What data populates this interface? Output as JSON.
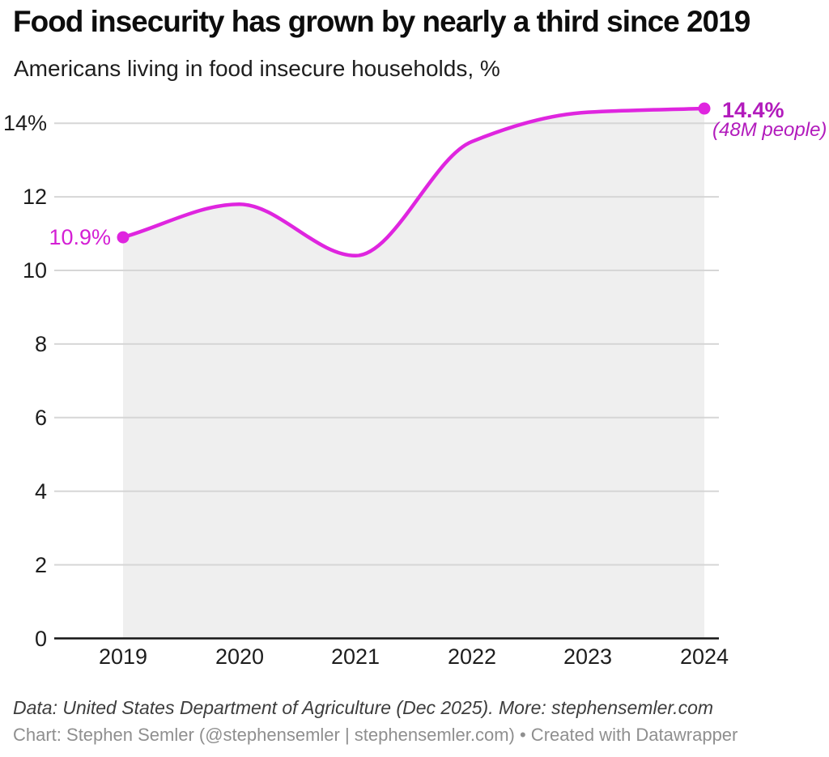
{
  "header": {
    "title": "Food insecurity has grown by nearly a third since 2019",
    "subtitle": "Americans living in food insecure households, %"
  },
  "chart_data": {
    "type": "line",
    "title": "Food insecurity has grown by nearly a third since 2019",
    "subtitle": "Americans living in food insecure households, %",
    "x": [
      2019,
      2020,
      2021,
      2022,
      2023,
      2024
    ],
    "series": [
      {
        "name": "Americans living in food insecure households, %",
        "values": [
          10.9,
          11.8,
          10.4,
          13.5,
          14.3,
          14.4
        ]
      }
    ],
    "ylim": [
      0,
      14.8
    ],
    "yticks": [
      0,
      2,
      4,
      6,
      8,
      10,
      12,
      14
    ],
    "ytick_labels": [
      "0",
      "2",
      "4",
      "6",
      "8",
      "10",
      "12",
      "14%"
    ],
    "xtick_labels": [
      "2019",
      "2020",
      "2021",
      "2022",
      "2023",
      "2024"
    ],
    "grid": "horizontal",
    "legend": "none",
    "line_smoothing": "monotone",
    "area_fill_under_line": true,
    "annotations": {
      "start": {
        "x": 2019,
        "y": 10.9,
        "label": "10.9%"
      },
      "end": {
        "x": 2024,
        "y": 14.4,
        "label": "14.4%",
        "sublabel": "(48M people)"
      }
    },
    "colors": {
      "line": "#df25df",
      "marker": "#df25df",
      "area_fill": "#efefef",
      "grid": "#d6d6d6",
      "axis_line": "#151515",
      "start_label": "#d41fd4",
      "value_labels": "#b21bbc",
      "text": "#1d1d1d"
    }
  },
  "footer": {
    "source_line": "Data: United States Department of Agriculture (Dec 2025). More: stephensemler.com",
    "byline": "Chart: Stephen Semler (@stephensemler | stephensemler.com) • Created with Datawrapper"
  }
}
